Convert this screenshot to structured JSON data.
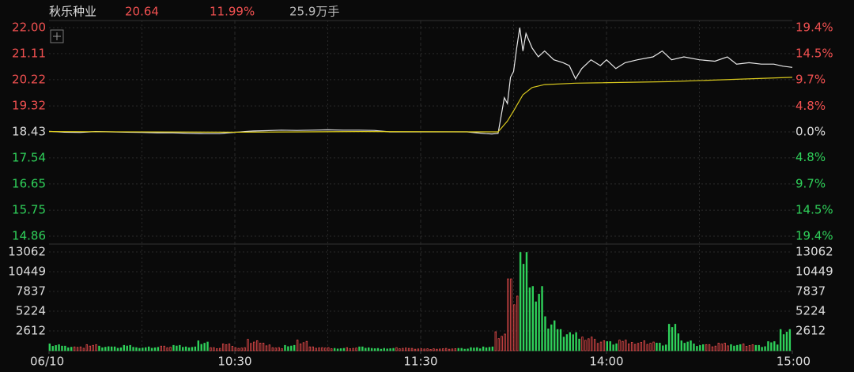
{
  "header": {
    "name": "秋乐种业",
    "price": "20.64",
    "change": "11.99%",
    "volume": "25.9万手"
  },
  "chart_data": [
    {
      "type": "line",
      "xlim": [
        0,
        240
      ],
      "ylim": [
        14.86,
        22.0
      ],
      "yticks": [
        {
          "value": 22.0,
          "label": "22.00"
        },
        {
          "value": 21.11,
          "label": "21.11"
        },
        {
          "value": 20.22,
          "label": "20.22"
        },
        {
          "value": 19.32,
          "label": "19.32"
        },
        {
          "value": 18.43,
          "label": "18.43"
        },
        {
          "value": 17.54,
          "label": "17.54"
        },
        {
          "value": 16.65,
          "label": "16.65"
        },
        {
          "value": 15.75,
          "label": "15.75"
        },
        {
          "value": 14.86,
          "label": "14.86"
        }
      ],
      "y2lim": [
        -19.37,
        19.37
      ],
      "y2ticks": [
        {
          "value": 19.4,
          "label": "19.4%"
        },
        {
          "value": 14.5,
          "label": "14.5%"
        },
        {
          "value": 9.7,
          "label": "9.7%"
        },
        {
          "value": 4.8,
          "label": "4.8%"
        },
        {
          "value": 0.0,
          "label": "0.0%"
        },
        {
          "value": -4.8,
          "label": "4.8%"
        },
        {
          "value": -9.7,
          "label": "9.7%"
        },
        {
          "value": -14.5,
          "label": "14.5%"
        },
        {
          "value": -19.4,
          "label": "19.4%"
        }
      ],
      "series": [
        {
          "color": "#e8e8e8",
          "x": [
            0,
            5,
            10,
            15,
            20,
            25,
            30,
            35,
            40,
            45,
            50,
            55,
            58,
            62,
            66,
            70,
            75,
            80,
            85,
            90,
            95,
            100,
            105,
            110,
            120,
            130,
            135,
            138,
            141,
            143,
            145,
            147,
            148,
            149,
            150,
            151,
            152,
            153,
            154,
            156,
            158,
            160,
            163,
            166,
            168,
            170,
            172,
            175,
            178,
            180,
            183,
            186,
            190,
            195,
            198,
            201,
            205,
            210,
            215,
            219,
            222,
            226,
            230,
            234,
            237,
            240
          ],
          "values": [
            18.45,
            18.42,
            18.41,
            18.44,
            18.43,
            18.42,
            18.41,
            18.4,
            18.4,
            18.38,
            18.37,
            18.37,
            18.4,
            18.43,
            18.46,
            18.47,
            18.49,
            18.48,
            18.49,
            18.5,
            18.49,
            18.49,
            18.48,
            18.43,
            18.43,
            18.43,
            18.43,
            18.4,
            18.37,
            18.36,
            18.38,
            19.6,
            19.4,
            20.3,
            20.5,
            21.3,
            22.0,
            21.2,
            21.8,
            21.3,
            21.0,
            21.2,
            20.9,
            20.8,
            20.7,
            20.25,
            20.6,
            20.9,
            20.7,
            20.9,
            20.6,
            20.8,
            20.9,
            21.0,
            21.2,
            20.9,
            21.0,
            20.9,
            20.85,
            21.0,
            20.75,
            20.8,
            20.75,
            20.75,
            20.68,
            20.64
          ]
        },
        {
          "color": "#d8c81e",
          "x": [
            0,
            60,
            100,
            145,
            148,
            150,
            153,
            156,
            160,
            170,
            200,
            240
          ],
          "values": [
            18.44,
            18.42,
            18.44,
            18.43,
            18.8,
            19.15,
            19.7,
            19.95,
            20.05,
            20.1,
            20.15,
            20.3
          ]
        }
      ]
    },
    {
      "type": "bar",
      "xlim": [
        0,
        240
      ],
      "ylim": [
        0,
        13062
      ],
      "yticks": [
        13062,
        10449,
        7837,
        5224,
        2612
      ],
      "xticks": [
        {
          "value": 0,
          "label": "06/10"
        },
        {
          "value": 60,
          "label": "10:30"
        },
        {
          "value": 120,
          "label": "11:30"
        },
        {
          "value": 180,
          "label": "14:00"
        },
        {
          "value": 240,
          "label": "15:00"
        }
      ],
      "up_color": "#e84b4b",
      "down_color": "#2fd15a",
      "x": [
        0,
        4,
        8,
        12,
        16,
        20,
        24,
        28,
        32,
        36,
        40,
        44,
        48,
        52,
        56,
        60,
        64,
        68,
        72,
        76,
        80,
        84,
        88,
        92,
        96,
        100,
        104,
        108,
        112,
        116,
        120,
        124,
        128,
        132,
        136,
        140,
        144,
        148,
        152,
        156,
        160,
        164,
        168,
        172,
        176,
        180,
        184,
        188,
        192,
        196,
        200,
        204,
        208,
        212,
        216,
        220,
        224,
        228,
        232,
        236
      ],
      "values": [
        900,
        600,
        500,
        800,
        600,
        500,
        700,
        400,
        500,
        600,
        700,
        500,
        1300,
        400,
        900,
        400,
        1500,
        1000,
        400,
        700,
        1400,
        500,
        400,
        300,
        400,
        500,
        300,
        300,
        400,
        300,
        250,
        250,
        300,
        300,
        400,
        500,
        2500,
        9500,
        13000,
        8500,
        4500,
        2800,
        2400,
        1800,
        1500,
        1200,
        1400,
        1100,
        1300,
        1000,
        3500,
        1300,
        900,
        800,
        1000,
        800,
        900,
        700,
        1200,
        2800
      ]
    }
  ]
}
